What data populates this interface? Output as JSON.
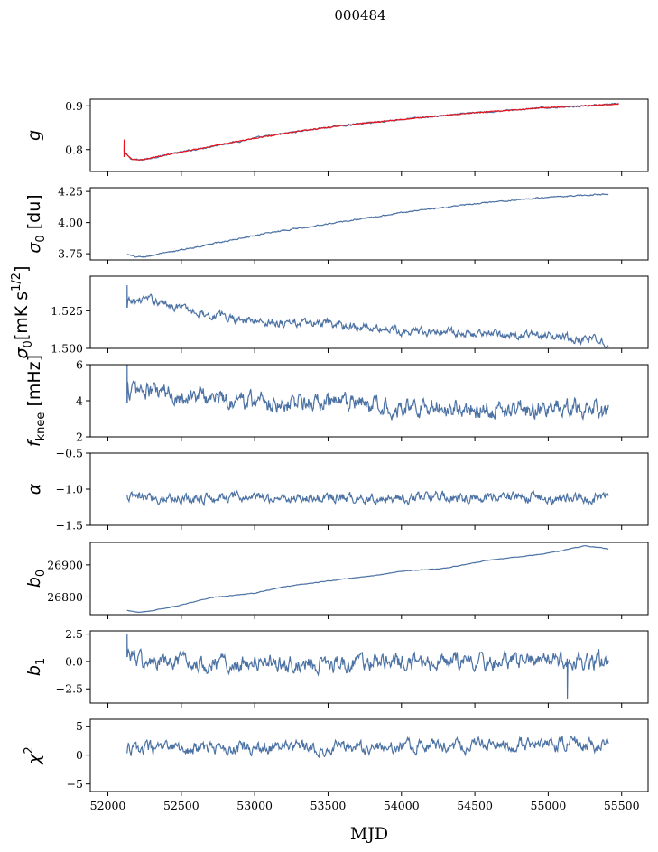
{
  "figure": {
    "title": "000484",
    "xlabel": "MJD"
  },
  "colors": {
    "series": "#4c72a4",
    "overlay": "#e8141c",
    "frame": "#000000",
    "background": "#ffffff"
  },
  "chart_data": [
    {
      "type": "line",
      "key": "g",
      "ylabel": "g",
      "ylabel_italic": true,
      "xlim": [
        51880,
        55680
      ],
      "ylim": [
        0.75,
        0.915
      ],
      "yticks": [
        0.8,
        0.9
      ],
      "ytick_labels": [
        "0.8",
        "0.9"
      ],
      "x_range": [
        52110,
        55480
      ],
      "trend": [
        [
          52110,
          0.795
        ],
        [
          52160,
          0.778
        ],
        [
          52220,
          0.776
        ],
        [
          52400,
          0.788
        ],
        [
          52700,
          0.807
        ],
        [
          53000,
          0.826
        ],
        [
          53300,
          0.842
        ],
        [
          53600,
          0.855
        ],
        [
          54000,
          0.869
        ],
        [
          54500,
          0.884
        ],
        [
          55000,
          0.896
        ],
        [
          55480,
          0.904
        ]
      ],
      "noise": 0.0015,
      "start_spike": [
        0.823,
        0.783
      ],
      "series": [
        {
          "color": "#4c72a4"
        },
        {
          "color": "#e8141c",
          "x_range": [
            52110,
            55480
          ]
        }
      ]
    },
    {
      "type": "line",
      "key": "sigma0_du",
      "ylabel": "σ0 [du]",
      "xlim": [
        51880,
        55680
      ],
      "ylim": [
        3.7,
        4.28
      ],
      "yticks": [
        3.75,
        4.0,
        4.25
      ],
      "ytick_labels": [
        "3.75",
        "4.00",
        "4.25"
      ],
      "x_range": [
        52130,
        55410
      ],
      "trend": [
        [
          52130,
          3.745
        ],
        [
          52180,
          3.725
        ],
        [
          52250,
          3.725
        ],
        [
          52500,
          3.78
        ],
        [
          52800,
          3.85
        ],
        [
          53100,
          3.92
        ],
        [
          53500,
          3.99
        ],
        [
          54000,
          4.08
        ],
        [
          54500,
          4.15
        ],
        [
          55000,
          4.205
        ],
        [
          55410,
          4.23
        ]
      ],
      "noise": 0.004
    },
    {
      "type": "line",
      "key": "sigma0_mk",
      "ylabel": "σ0[mK s1/2]",
      "xlim": [
        51880,
        55680
      ],
      "ylim": [
        1.5,
        1.548
      ],
      "yticks": [
        1.5,
        1.525
      ],
      "ytick_labels": [
        "1.500",
        "1.525"
      ],
      "x_range": [
        52130,
        55410
      ],
      "trend": [
        [
          52130,
          1.53
        ],
        [
          52250,
          1.533
        ],
        [
          52400,
          1.53
        ],
        [
          52600,
          1.524
        ],
        [
          53000,
          1.518
        ],
        [
          53500,
          1.516
        ],
        [
          54000,
          1.512
        ],
        [
          54500,
          1.51
        ],
        [
          55000,
          1.508
        ],
        [
          55410,
          1.504
        ]
      ],
      "noise": 0.0022,
      "start_spike": [
        1.542,
        1.527
      ]
    },
    {
      "type": "line",
      "key": "fknee",
      "ylabel": "fknee [mHz]",
      "xlim": [
        51880,
        55680
      ],
      "ylim": [
        2,
        6
      ],
      "yticks": [
        2,
        4,
        6
      ],
      "ytick_labels": [
        "2",
        "4",
        "6"
      ],
      "x_range": [
        52130,
        55410
      ],
      "trend": [
        [
          52130,
          4.6
        ],
        [
          52400,
          4.4
        ],
        [
          52800,
          4.1
        ],
        [
          53300,
          3.9
        ],
        [
          54000,
          3.7
        ],
        [
          54500,
          3.6
        ],
        [
          55000,
          3.55
        ],
        [
          55410,
          3.4
        ]
      ],
      "noise": 0.42,
      "start_spike": [
        6.1,
        3.9
      ]
    },
    {
      "type": "line",
      "key": "alpha",
      "ylabel": "α",
      "xlim": [
        51880,
        55680
      ],
      "ylim": [
        -1.5,
        -0.5
      ],
      "yticks": [
        -1.5,
        -1.0,
        -0.5
      ],
      "ytick_labels": [
        "−1.5",
        "−1.0",
        "−0.5"
      ],
      "x_range": [
        52130,
        55410
      ],
      "trend": [
        [
          52130,
          -1.12
        ],
        [
          55410,
          -1.12
        ]
      ],
      "noise": 0.055
    },
    {
      "type": "line",
      "key": "b0",
      "ylabel": "b0",
      "xlim": [
        51880,
        55680
      ],
      "ylim": [
        26745,
        26970
      ],
      "yticks": [
        26800,
        26900
      ],
      "ytick_labels": [
        "26800",
        "26900"
      ],
      "x_range": [
        52130,
        55410
      ],
      "trend": [
        [
          52130,
          26758
        ],
        [
          52200,
          26752
        ],
        [
          52300,
          26757
        ],
        [
          52500,
          26775
        ],
        [
          52700,
          26798
        ],
        [
          53000,
          26812
        ],
        [
          53200,
          26832
        ],
        [
          53500,
          26850
        ],
        [
          53800,
          26866
        ],
        [
          54000,
          26880
        ],
        [
          54300,
          26890
        ],
        [
          54600,
          26915
        ],
        [
          54900,
          26930
        ],
        [
          55100,
          26945
        ],
        [
          55250,
          26960
        ],
        [
          55410,
          26950
        ]
      ],
      "noise": 0.7
    },
    {
      "type": "line",
      "key": "b1",
      "ylabel": "b1",
      "xlim": [
        51880,
        55680
      ],
      "ylim": [
        -3.8,
        2.8
      ],
      "yticks": [
        -2.5,
        0.0,
        2.5
      ],
      "ytick_labels": [
        "−2.5",
        "0.0",
        "2.5"
      ],
      "x_range": [
        52130,
        55410
      ],
      "trend": [
        [
          52130,
          0.9
        ],
        [
          52250,
          -0.2
        ],
        [
          55410,
          0.0
        ]
      ],
      "noise": 0.6,
      "start_spike": [
        2.5,
        0.4
      ],
      "dip": [
        55130,
        -3.4
      ]
    },
    {
      "type": "line",
      "key": "chi2",
      "ylabel": "χ2",
      "xlim": [
        51880,
        55680
      ],
      "ylim": [
        -6.3,
        6.2
      ],
      "yticks": [
        -5,
        0,
        5
      ],
      "ytick_labels": [
        "−5",
        "0",
        "5"
      ],
      "xticks": [
        52000,
        52500,
        53000,
        53500,
        54000,
        54500,
        55000,
        55500
      ],
      "xtick_labels": [
        "52000",
        "52500",
        "53000",
        "53500",
        "54000",
        "54500",
        "55000",
        "55500"
      ],
      "x_range": [
        52130,
        55410
      ],
      "trend": [
        [
          52130,
          1.0
        ],
        [
          55410,
          2.0
        ]
      ],
      "noise": 0.85
    }
  ]
}
